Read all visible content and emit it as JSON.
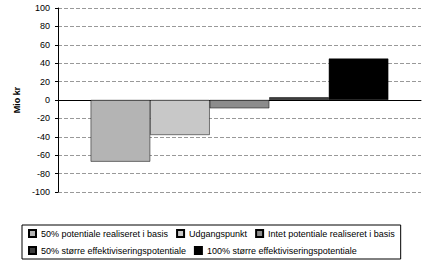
{
  "chart_data": {
    "type": "bar",
    "ylabel": "Mio kr",
    "categories": [
      null
    ],
    "series": [
      {
        "name": "50% potentiale realiseret i basis",
        "color": "#b4b4b4",
        "values": [
          -67
        ]
      },
      {
        "name": "Udgangspunkt",
        "color": "#c8c8c8",
        "values": [
          -38
        ]
      },
      {
        "name": "Intet potentiale realiseret i basis",
        "color": "#8c8c8c",
        "values": [
          -9
        ]
      },
      {
        "name": "50% større effektiviseringspotentiale",
        "color": "#3c3c3c",
        "values": [
          3
        ]
      },
      {
        "name": "100% større effektiviseringspotentiale",
        "color": "#000000",
        "values": [
          45
        ]
      }
    ],
    "ylim": [
      -100,
      100
    ],
    "yticks": [
      -100,
      -80,
      -60,
      -40,
      -20,
      0,
      20,
      40,
      60,
      80,
      100
    ],
    "grid": true,
    "legend": "bottom",
    "tick_labels": "y"
  }
}
